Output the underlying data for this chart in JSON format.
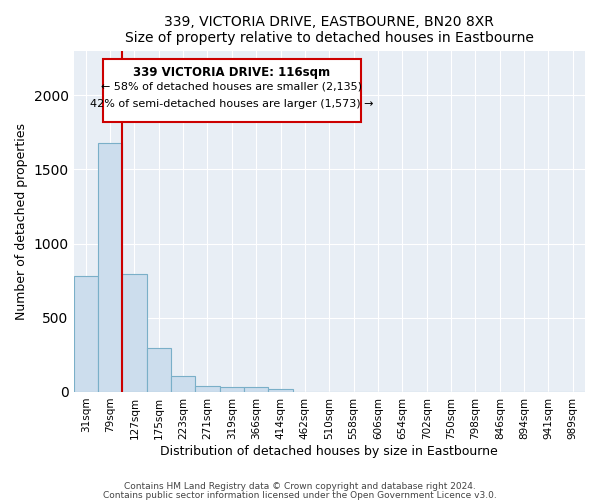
{
  "title": "339, VICTORIA DRIVE, EASTBOURNE, BN20 8XR",
  "subtitle": "Size of property relative to detached houses in Eastbourne",
  "xlabel": "Distribution of detached houses by size in Eastbourne",
  "ylabel": "Number of detached properties",
  "categories": [
    "31sqm",
    "79sqm",
    "127sqm",
    "175sqm",
    "223sqm",
    "271sqm",
    "319sqm",
    "366sqm",
    "414sqm",
    "462sqm",
    "510sqm",
    "558sqm",
    "606sqm",
    "654sqm",
    "702sqm",
    "750sqm",
    "798sqm",
    "846sqm",
    "894sqm",
    "941sqm",
    "989sqm"
  ],
  "values": [
    780,
    1680,
    795,
    295,
    110,
    38,
    35,
    35,
    18,
    0,
    0,
    0,
    0,
    0,
    0,
    0,
    0,
    0,
    0,
    0,
    0
  ],
  "bar_color": "#ccdded",
  "bar_edge_color": "#7aafc8",
  "marker_label": "339 VICTORIA DRIVE: 116sqm",
  "annotation_line1": "← 58% of detached houses are smaller (2,135)",
  "annotation_line2": "42% of semi-detached houses are larger (1,573) →",
  "vline_color": "#cc0000",
  "vline_x": 1.5,
  "ylim": [
    0,
    2300
  ],
  "footer1": "Contains HM Land Registry data © Crown copyright and database right 2024.",
  "footer2": "Contains public sector information licensed under the Open Government Licence v3.0.",
  "box_facecolor": "#ffffff",
  "box_edgecolor": "#cc0000",
  "bg_color": "#e8eef5"
}
